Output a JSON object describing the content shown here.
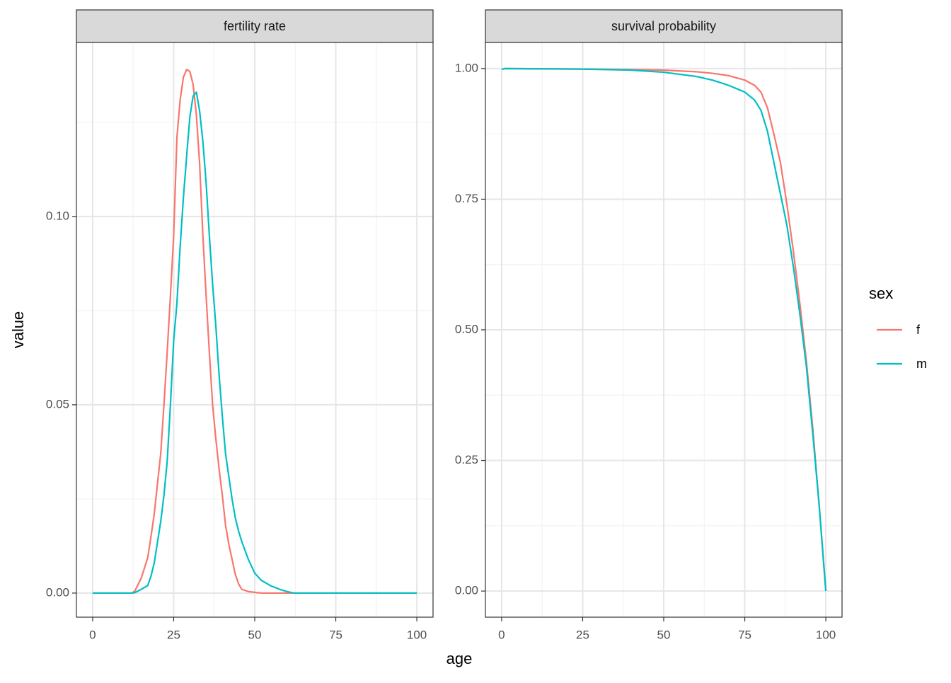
{
  "xlabel": "age",
  "ylabel": "value",
  "legend_title": "sex",
  "chart_data": [
    {
      "type": "line",
      "title": "fertility rate",
      "x": [
        0,
        5,
        10,
        12,
        13,
        15,
        17,
        18,
        19,
        20,
        21,
        22,
        23,
        24,
        25,
        26,
        27,
        28,
        29,
        30,
        31,
        32,
        33,
        34,
        35,
        36,
        37,
        38,
        39,
        40,
        41,
        42,
        43,
        44,
        45,
        46,
        48,
        50,
        52,
        55,
        58,
        60,
        62,
        65,
        70,
        75,
        80,
        85,
        90,
        95,
        100
      ],
      "series": [
        {
          "name": "f",
          "color": "#F8766D",
          "values": [
            0,
            0,
            0,
            0,
            0.0005,
            0.004,
            0.0094,
            0.015,
            0.021,
            0.029,
            0.037,
            0.05,
            0.064,
            0.079,
            0.095,
            0.121,
            0.131,
            0.137,
            0.139,
            0.1385,
            0.135,
            0.127,
            0.114,
            0.095,
            0.079,
            0.064,
            0.05,
            0.041,
            0.033,
            0.026,
            0.018,
            0.013,
            0.009,
            0.005,
            0.0025,
            0.001,
            0.0004,
            0.0002,
            0,
            0,
            0,
            0,
            0,
            0,
            0,
            0,
            0,
            0,
            0,
            0,
            0
          ]
        },
        {
          "name": "m",
          "color": "#00BFC4",
          "values": [
            0,
            0,
            0,
            0,
            0.0001,
            0.001,
            0.002,
            0.0045,
            0.008,
            0.0135,
            0.019,
            0.026,
            0.035,
            0.05,
            0.067,
            0.077,
            0.092,
            0.105,
            0.116,
            0.1265,
            0.132,
            0.133,
            0.128,
            0.12,
            0.109,
            0.095,
            0.082,
            0.071,
            0.058,
            0.047,
            0.037,
            0.031,
            0.025,
            0.02,
            0.0165,
            0.0137,
            0.009,
            0.0053,
            0.0034,
            0.0019,
            0.0009,
            0.0004,
            0,
            0,
            0,
            0,
            0,
            0,
            0,
            0,
            0
          ]
        }
      ],
      "xlim": [
        -5,
        105
      ],
      "xticks": [
        0,
        25,
        50,
        75,
        100
      ],
      "ylim": [
        -0.0064,
        0.1462
      ],
      "yticks": [
        {
          "value": 0,
          "label": "0.00"
        },
        {
          "value": 0.05,
          "label": "0.05"
        },
        {
          "value": 0.1,
          "label": "0.10"
        }
      ],
      "grid": true
    },
    {
      "type": "line",
      "title": "survival probability",
      "x": [
        0,
        1,
        25,
        40,
        50,
        60,
        65,
        70,
        75,
        78,
        80,
        82,
        84,
        86,
        88,
        90,
        92,
        94,
        96,
        98,
        100
      ],
      "series": [
        {
          "color": "#F8766D",
          "values": [
            0.9985,
            1,
            0.999,
            0.998,
            0.997,
            0.994,
            0.991,
            0.9865,
            0.978,
            0.968,
            0.955,
            0.925,
            0.874,
            0.82,
            0.74,
            0.65,
            0.55,
            0.44,
            0.31,
            0.16,
            0
          ]
        },
        {
          "color": "#00BFC4",
          "values": [
            0.9985,
            1,
            0.999,
            0.997,
            0.993,
            0.985,
            0.978,
            0.968,
            0.955,
            0.94,
            0.92,
            0.88,
            0.82,
            0.76,
            0.7,
            0.62,
            0.53,
            0.43,
            0.3,
            0.16,
            0
          ]
        }
      ],
      "xlim": [
        -5,
        105
      ],
      "xticks": [
        0,
        25,
        50,
        75,
        100
      ],
      "ylim": [
        -0.05,
        1.05
      ],
      "yticks": [
        {
          "value": 0,
          "label": "0.00"
        },
        {
          "value": 0.25,
          "label": "0.25"
        },
        {
          "value": 0.5,
          "label": "0.50"
        },
        {
          "value": 0.75,
          "label": "0.75"
        },
        {
          "value": 1,
          "label": "1.00"
        }
      ],
      "grid": true
    }
  ]
}
